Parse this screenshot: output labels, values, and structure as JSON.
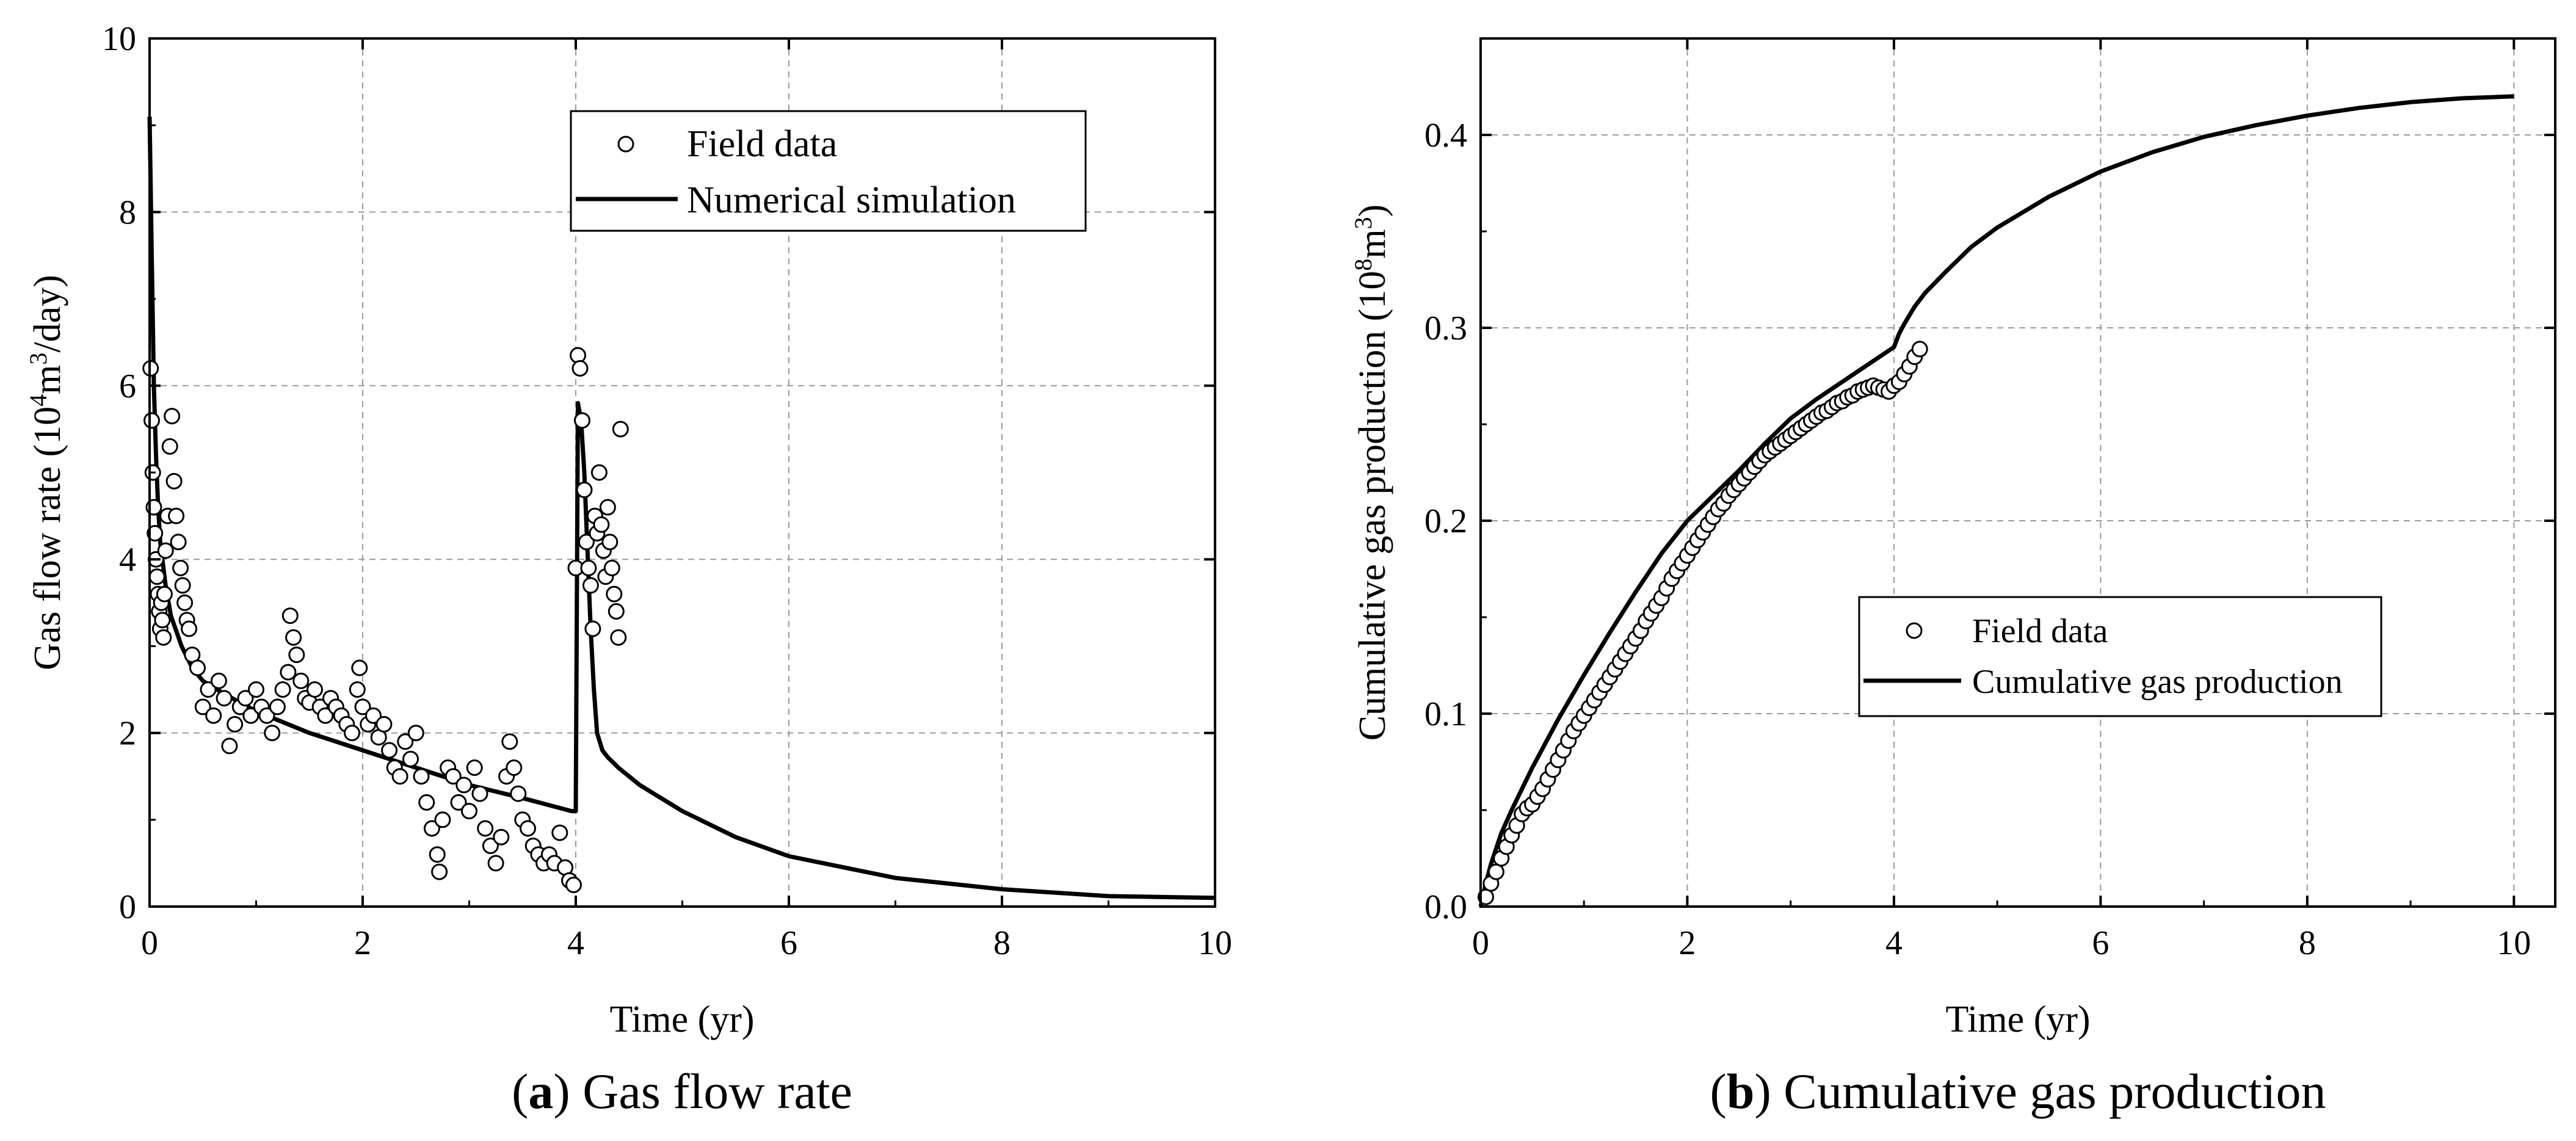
{
  "chart_data": [
    {
      "type": "line+scatter",
      "caption_letter": "a",
      "caption_text": "Gas flow rate",
      "xlabel": "Time (yr)",
      "ylabel_parts": [
        "Gas flow rate (10",
        "4",
        "m",
        "3",
        "/day)"
      ],
      "xlim": [
        0,
        10
      ],
      "ylim": [
        0,
        10
      ],
      "x_ticks": [
        "0",
        "2",
        "4",
        "6",
        "8",
        "10"
      ],
      "y_ticks": [
        "0",
        "2",
        "4",
        "6",
        "8",
        "10"
      ],
      "grid": true,
      "legend_position": "top-right",
      "legend": [
        "Field data",
        "Numerical simulation"
      ],
      "series": [
        {
          "name": "Numerical simulation",
          "kind": "line",
          "x": [
            0,
            0.02,
            0.04,
            0.06,
            0.08,
            0.1,
            0.15,
            0.2,
            0.3,
            0.4,
            0.5,
            0.7,
            1.0,
            1.5,
            2.0,
            2.5,
            3.0,
            3.5,
            3.96,
            4.0,
            4.02,
            4.05,
            4.08,
            4.11,
            4.14,
            4.17,
            4.2,
            4.25,
            4.3,
            4.4,
            4.6,
            5.0,
            5.5,
            6.0,
            7.0,
            8.0,
            9.0,
            10.0
          ],
          "y": [
            9.1,
            7.5,
            6.0,
            5.2,
            4.6,
            4.2,
            3.7,
            3.35,
            3.0,
            2.75,
            2.6,
            2.45,
            2.25,
            2.0,
            1.8,
            1.6,
            1.4,
            1.25,
            1.1,
            1.1,
            5.8,
            5.6,
            5.0,
            4.1,
            3.2,
            2.5,
            2.0,
            1.8,
            1.72,
            1.6,
            1.4,
            1.1,
            0.8,
            0.58,
            0.33,
            0.2,
            0.12,
            0.1
          ]
        },
        {
          "name": "Field data",
          "kind": "scatter",
          "x": [
            0.01,
            0.02,
            0.03,
            0.04,
            0.05,
            0.06,
            0.07,
            0.08,
            0.09,
            0.1,
            0.11,
            0.12,
            0.13,
            0.14,
            0.15,
            0.17,
            0.19,
            0.21,
            0.23,
            0.25,
            0.27,
            0.29,
            0.31,
            0.33,
            0.35,
            0.37,
            0.4,
            0.45,
            0.5,
            0.55,
            0.6,
            0.65,
            0.7,
            0.75,
            0.8,
            0.85,
            0.9,
            0.95,
            1.0,
            1.05,
            1.1,
            1.15,
            1.2,
            1.25,
            1.3,
            1.32,
            1.35,
            1.38,
            1.42,
            1.46,
            1.5,
            1.55,
            1.6,
            1.65,
            1.7,
            1.75,
            1.8,
            1.85,
            1.9,
            1.95,
            1.97,
            2.0,
            2.05,
            2.1,
            2.15,
            2.2,
            2.25,
            2.3,
            2.35,
            2.4,
            2.45,
            2.5,
            2.55,
            2.6,
            2.65,
            2.7,
            2.72,
            2.75,
            2.8,
            2.85,
            2.9,
            2.95,
            3.0,
            3.05,
            3.1,
            3.15,
            3.2,
            3.25,
            3.3,
            3.35,
            3.38,
            3.42,
            3.46,
            3.5,
            3.55,
            3.6,
            3.65,
            3.7,
            3.75,
            3.8,
            3.85,
            3.9,
            3.94,
            3.98,
            4.0,
            4.02,
            4.04,
            4.06,
            4.08,
            4.1,
            4.12,
            4.14,
            4.16,
            4.18,
            4.2,
            4.22,
            4.24,
            4.26,
            4.28,
            4.3,
            4.32,
            4.34,
            4.36,
            4.38,
            4.4,
            4.42
          ],
          "y": [
            6.2,
            5.6,
            5.0,
            4.6,
            4.3,
            4.0,
            3.8,
            3.6,
            3.4,
            3.2,
            3.5,
            3.3,
            3.1,
            3.6,
            4.1,
            4.5,
            5.3,
            5.65,
            4.9,
            4.5,
            4.2,
            3.9,
            3.7,
            3.5,
            3.3,
            3.2,
            2.9,
            2.75,
            2.3,
            2.5,
            2.2,
            2.6,
            2.4,
            1.85,
            2.1,
            2.3,
            2.4,
            2.2,
            2.5,
            2.3,
            2.2,
            2.0,
            2.3,
            2.5,
            2.7,
            3.35,
            3.1,
            2.9,
            2.6,
            2.4,
            2.35,
            2.5,
            2.3,
            2.2,
            2.4,
            2.3,
            2.2,
            2.1,
            2.0,
            2.5,
            2.75,
            2.3,
            2.1,
            2.2,
            1.95,
            2.1,
            1.8,
            1.6,
            1.5,
            1.9,
            1.7,
            2.0,
            1.5,
            1.2,
            0.9,
            0.6,
            0.4,
            1.0,
            1.6,
            1.5,
            1.2,
            1.4,
            1.1,
            1.6,
            1.3,
            0.9,
            0.7,
            0.5,
            0.8,
            1.5,
            1.9,
            1.6,
            1.3,
            1.0,
            0.9,
            0.7,
            0.6,
            0.5,
            0.6,
            0.5,
            0.85,
            0.45,
            0.3,
            0.25,
            3.9,
            6.35,
            6.2,
            5.6,
            4.8,
            4.2,
            3.9,
            3.7,
            3.2,
            4.5,
            4.3,
            5.0,
            4.4,
            4.1,
            3.8,
            4.6,
            4.2,
            3.9,
            3.6,
            3.4,
            3.1,
            5.5
          ]
        }
      ]
    },
    {
      "type": "line+scatter",
      "caption_letter": "b",
      "caption_text": "Cumulative gas production",
      "xlabel": "Time (yr)",
      "ylabel_parts": [
        "Cumulative gas production (10",
        "8",
        "m",
        "3",
        ")"
      ],
      "xlim": [
        0,
        10.4
      ],
      "ylim": [
        0,
        0.45
      ],
      "x_ticks": [
        "0",
        "2",
        "4",
        "6",
        "8",
        "10"
      ],
      "y_ticks": [
        "0.0",
        "0.1",
        "0.2",
        "0.3",
        "0.4"
      ],
      "grid": true,
      "legend_position": "center-right",
      "legend": [
        "Field data",
        "Cumulative gas production"
      ],
      "series": [
        {
          "name": "Cumulative gas production",
          "kind": "line",
          "x": [
            0,
            0.05,
            0.1,
            0.2,
            0.3,
            0.5,
            0.75,
            1.0,
            1.25,
            1.5,
            1.75,
            2.0,
            2.25,
            2.5,
            2.75,
            3.0,
            3.25,
            3.5,
            3.75,
            4.0,
            4.05,
            4.1,
            4.2,
            4.3,
            4.5,
            4.75,
            5.0,
            5.5,
            6.0,
            6.5,
            7.0,
            7.5,
            8.0,
            8.5,
            9.0,
            9.5,
            10.0
          ],
          "y": [
            0.0,
            0.012,
            0.022,
            0.038,
            0.05,
            0.072,
            0.097,
            0.12,
            0.142,
            0.163,
            0.183,
            0.2,
            0.213,
            0.226,
            0.24,
            0.253,
            0.263,
            0.272,
            0.281,
            0.29,
            0.297,
            0.302,
            0.311,
            0.318,
            0.329,
            0.342,
            0.352,
            0.368,
            0.381,
            0.391,
            0.399,
            0.405,
            0.41,
            0.414,
            0.417,
            0.419,
            0.42
          ]
        },
        {
          "name": "Field data",
          "kind": "scatter",
          "x": [
            0.05,
            0.1,
            0.15,
            0.2,
            0.25,
            0.3,
            0.35,
            0.4,
            0.45,
            0.5,
            0.55,
            0.6,
            0.65,
            0.7,
            0.75,
            0.8,
            0.85,
            0.9,
            0.95,
            1.0,
            1.05,
            1.1,
            1.15,
            1.2,
            1.25,
            1.3,
            1.35,
            1.4,
            1.45,
            1.5,
            1.55,
            1.6,
            1.65,
            1.7,
            1.75,
            1.8,
            1.85,
            1.9,
            1.95,
            2.0,
            2.05,
            2.1,
            2.15,
            2.2,
            2.25,
            2.3,
            2.35,
            2.4,
            2.45,
            2.5,
            2.55,
            2.6,
            2.65,
            2.7,
            2.75,
            2.8,
            2.85,
            2.9,
            2.95,
            3.0,
            3.05,
            3.1,
            3.15,
            3.2,
            3.25,
            3.3,
            3.35,
            3.4,
            3.45,
            3.5,
            3.55,
            3.6,
            3.65,
            3.7,
            3.75,
            3.8,
            3.85,
            3.9,
            3.95,
            4.0,
            4.05,
            4.1,
            4.15,
            4.2,
            4.25
          ],
          "y": [
            0.005,
            0.012,
            0.018,
            0.025,
            0.031,
            0.037,
            0.042,
            0.048,
            0.051,
            0.053,
            0.057,
            0.061,
            0.066,
            0.071,
            0.076,
            0.081,
            0.086,
            0.091,
            0.095,
            0.099,
            0.103,
            0.107,
            0.111,
            0.115,
            0.119,
            0.123,
            0.127,
            0.131,
            0.135,
            0.139,
            0.143,
            0.148,
            0.152,
            0.156,
            0.16,
            0.165,
            0.17,
            0.174,
            0.178,
            0.182,
            0.186,
            0.19,
            0.194,
            0.198,
            0.202,
            0.206,
            0.209,
            0.213,
            0.216,
            0.219,
            0.222,
            0.225,
            0.228,
            0.231,
            0.234,
            0.236,
            0.238,
            0.24,
            0.242,
            0.244,
            0.246,
            0.248,
            0.25,
            0.252,
            0.254,
            0.256,
            0.257,
            0.259,
            0.261,
            0.262,
            0.264,
            0.265,
            0.267,
            0.268,
            0.269,
            0.27,
            0.269,
            0.268,
            0.267,
            0.27,
            0.272,
            0.276,
            0.28,
            0.285,
            0.289
          ]
        }
      ]
    }
  ]
}
